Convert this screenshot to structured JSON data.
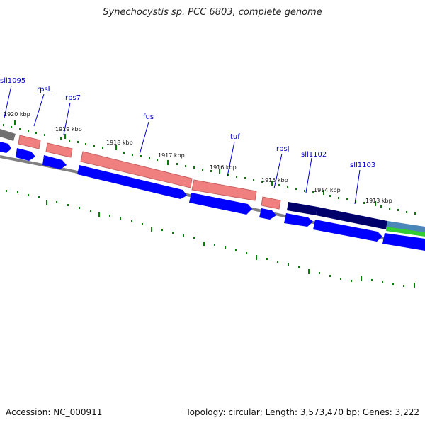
{
  "title": "Synechocystis sp. PCC 6803, complete genome",
  "footer": {
    "accession": "Accession: NC_000911",
    "genome_info": "Topology: circular; Length: 3,573,470 bp; Genes: 3,222"
  },
  "colors": {
    "background": "#ffffff",
    "gene_label": "#0000cc",
    "forward_strand_gene": "#f08080",
    "reverse_strand_cds": "#0000ff",
    "dark_gene": "#00006b",
    "grey_gene": "#707070",
    "green_feature": "#33cc33",
    "teal_feature": "#4a86b8",
    "backbone": "#808080",
    "ticks": "#008000"
  },
  "map": {
    "kbp_markers": [
      "1920 kbp",
      "1919 kbp",
      "1918 kbp",
      "1917 kbp",
      "1916 kbp",
      "1915 kbp",
      "1914 kbp",
      "1913 kbp"
    ],
    "genes": [
      {
        "label": "sll1095"
      },
      {
        "label": "rpsL"
      },
      {
        "label": "rps7"
      },
      {
        "label": "fus"
      },
      {
        "label": "tuf"
      },
      {
        "label": "rpsJ"
      },
      {
        "label": "sll1102"
      },
      {
        "label": "sll1103"
      }
    ]
  }
}
